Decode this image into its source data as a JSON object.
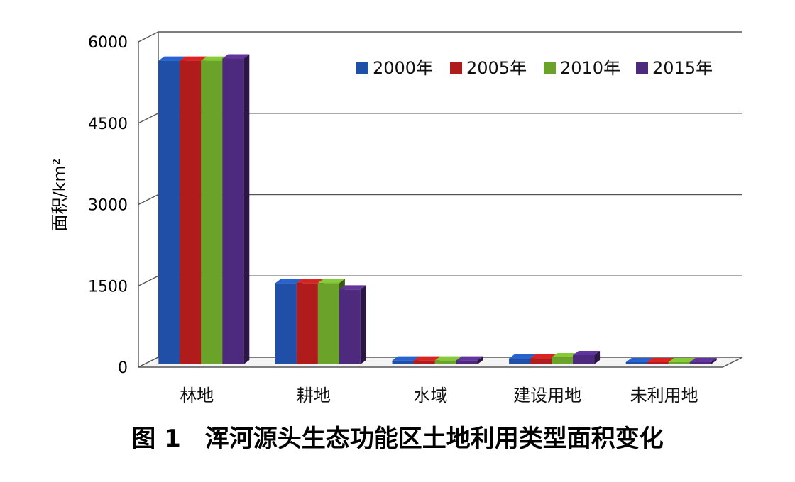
{
  "chart_data": {
    "type": "bar",
    "title": "",
    "caption": "图 1　浑河源头生态功能区土地利用类型面积变化",
    "xlabel": "",
    "ylabel": "面积/km²",
    "ylim": [
      0,
      6000
    ],
    "yticks": [
      "0",
      "1500",
      "3000",
      "4500",
      "6000"
    ],
    "ytick_values": [
      0,
      1500,
      3000,
      4500,
      6000
    ],
    "categories": [
      "林地",
      "耕地",
      "水域",
      "建设用地",
      "未利用地"
    ],
    "series": [
      {
        "name": "2000年",
        "color": "#1f4fa6",
        "values": [
          5600,
          1500,
          70,
          110,
          20
        ]
      },
      {
        "name": "2005年",
        "color": "#b01c1c",
        "values": [
          5600,
          1500,
          70,
          110,
          20
        ]
      },
      {
        "name": "2010年",
        "color": "#6aa22a",
        "values": [
          5600,
          1500,
          70,
          130,
          20
        ]
      },
      {
        "name": "2015年",
        "color": "#4e2a7e",
        "values": [
          5640,
          1380,
          70,
          170,
          20
        ]
      }
    ],
    "grid": true,
    "legend_position": "top-right",
    "style": "3d-bar"
  }
}
